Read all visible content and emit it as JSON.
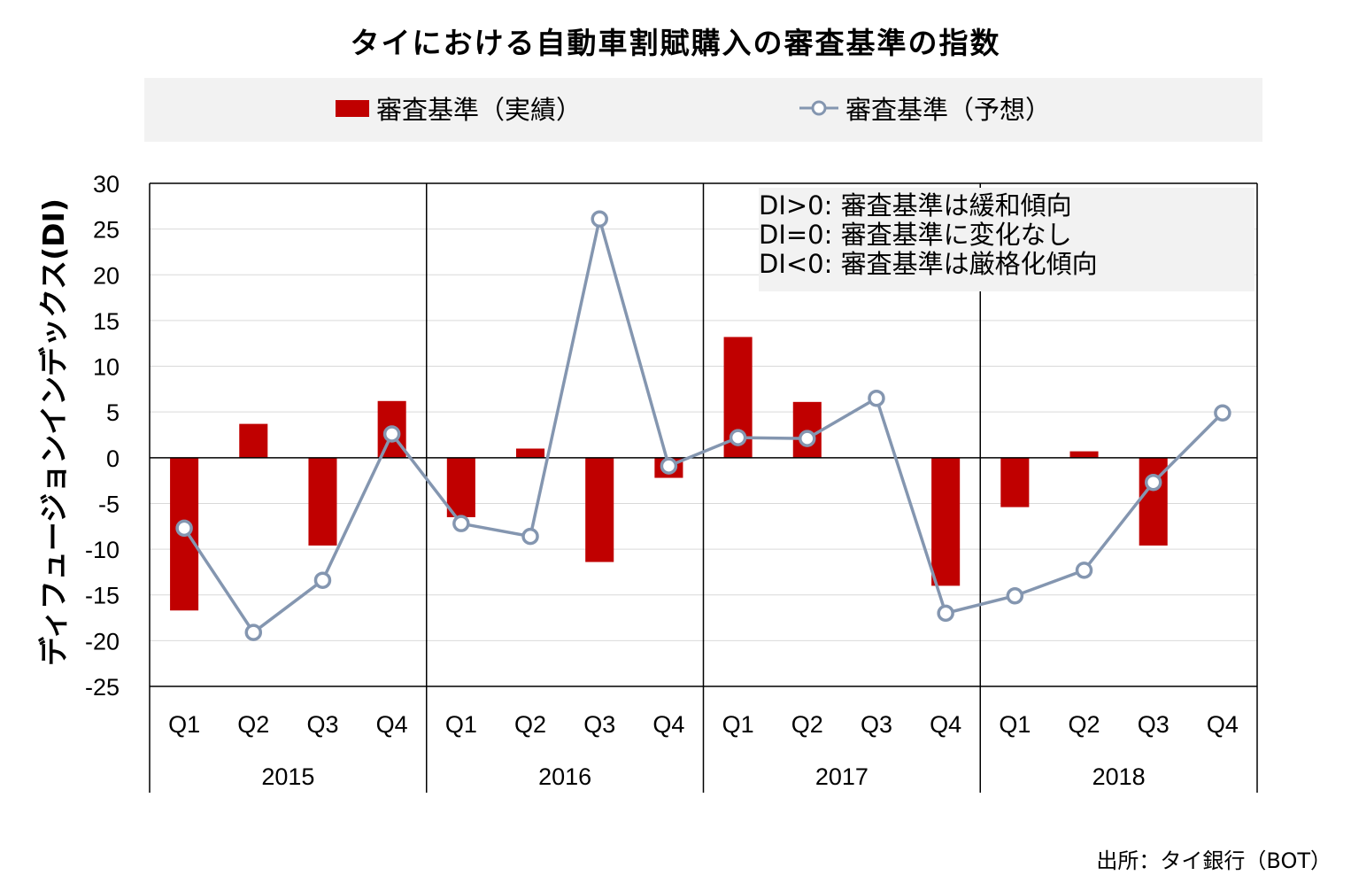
{
  "title": "タイにおける自動車割賦購入の審査基準の指数",
  "legend": {
    "actual": "審査基準（実績）",
    "forecast": "審査基準（予想）"
  },
  "annotation": [
    "DI>0: 審査基準は緩和傾向",
    "DI=0: 審査基準に変化なし",
    "DI<0: 審査基準は厳格化傾向"
  ],
  "source": "出所：タイ銀行（BOT）",
  "colors": {
    "actual": "#c00000",
    "forecast": "#8496b0",
    "grid": "#d9d9d9"
  },
  "chart_data": {
    "type": "bar",
    "title": "タイにおける自動車割賦購入の審査基準の指数",
    "ylabel": "ディフュージョンインデックス(DI)",
    "xlabel": "",
    "ylim": [
      -25,
      30
    ],
    "yticks": [
      30,
      25,
      20,
      15,
      10,
      5,
      0,
      -5,
      -10,
      -15,
      -20,
      -25
    ],
    "grid": true,
    "legend_position": "top",
    "years": [
      "2015",
      "2016",
      "2017",
      "2018"
    ],
    "categories": [
      "Q1",
      "Q2",
      "Q3",
      "Q4",
      "Q1",
      "Q2",
      "Q3",
      "Q4",
      "Q1",
      "Q2",
      "Q3",
      "Q4",
      "Q1",
      "Q2",
      "Q3",
      "Q4"
    ],
    "series": [
      {
        "name": "審査基準（実績）",
        "type": "bar",
        "values": [
          -16.7,
          3.7,
          -9.6,
          6.2,
          -6.5,
          1.0,
          -11.4,
          -2.2,
          13.2,
          6.1,
          0,
          -14.0,
          -5.4,
          0.7,
          -9.6,
          0
        ]
      },
      {
        "name": "審査基準（予想）",
        "type": "line",
        "values": [
          -7.7,
          -19.1,
          -13.4,
          2.6,
          -7.2,
          -8.6,
          26.1,
          -0.9,
          2.2,
          2.1,
          6.5,
          -17.0,
          -15.1,
          -12.3,
          -2.7,
          4.9
        ]
      }
    ]
  }
}
